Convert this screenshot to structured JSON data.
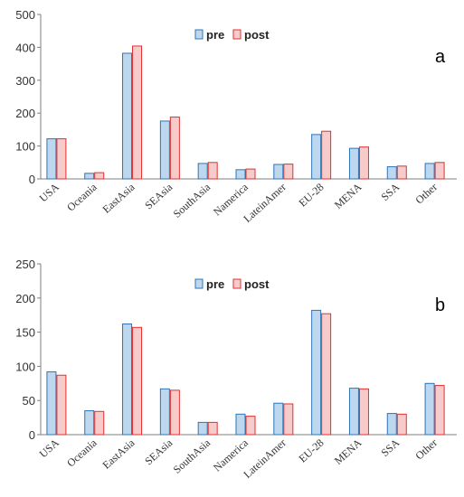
{
  "chart_data": [
    {
      "type": "bar",
      "panel_label": "a",
      "categories": [
        "USA",
        "Oceania",
        "EastAsia",
        "SEAsia",
        "SouthAsia",
        "Namerica",
        "LateinAmer",
        "EU-28",
        "MENA",
        "SSA",
        "Other"
      ],
      "series": [
        {
          "name": "pre",
          "values": [
            122,
            17,
            382,
            176,
            47,
            28,
            44,
            135,
            93,
            37,
            47
          ],
          "color": "#bdd7ee",
          "stroke": "#2e75b6"
        },
        {
          "name": "post",
          "values": [
            122,
            19,
            404,
            188,
            50,
            30,
            45,
            145,
            97,
            39,
            50
          ],
          "color": "#f8cbcb",
          "stroke": "#e03030"
        }
      ],
      "ylim": [
        0,
        500
      ],
      "yticks": [
        0,
        100,
        200,
        300,
        400,
        500
      ],
      "legend_position": "top-center",
      "grid": false
    },
    {
      "type": "bar",
      "panel_label": "b",
      "categories": [
        "USA",
        "Oceania",
        "EastAsia",
        "SEAsia",
        "SouthAsia",
        "Namerica",
        "LateinAmer",
        "EU-28",
        "MENA",
        "SSA",
        "Other"
      ],
      "series": [
        {
          "name": "pre",
          "values": [
            92,
            35,
            162,
            67,
            18,
            30,
            46,
            182,
            68,
            31,
            75
          ],
          "color": "#bdd7ee",
          "stroke": "#2e75b6"
        },
        {
          "name": "post",
          "values": [
            87,
            34,
            157,
            65,
            18,
            27,
            45,
            177,
            67,
            30,
            72
          ],
          "color": "#f8cbcb",
          "stroke": "#e03030"
        }
      ],
      "ylim": [
        0,
        250
      ],
      "yticks": [
        0,
        50,
        100,
        150,
        200,
        250
      ],
      "legend_position": "top-center",
      "grid": false
    }
  ]
}
